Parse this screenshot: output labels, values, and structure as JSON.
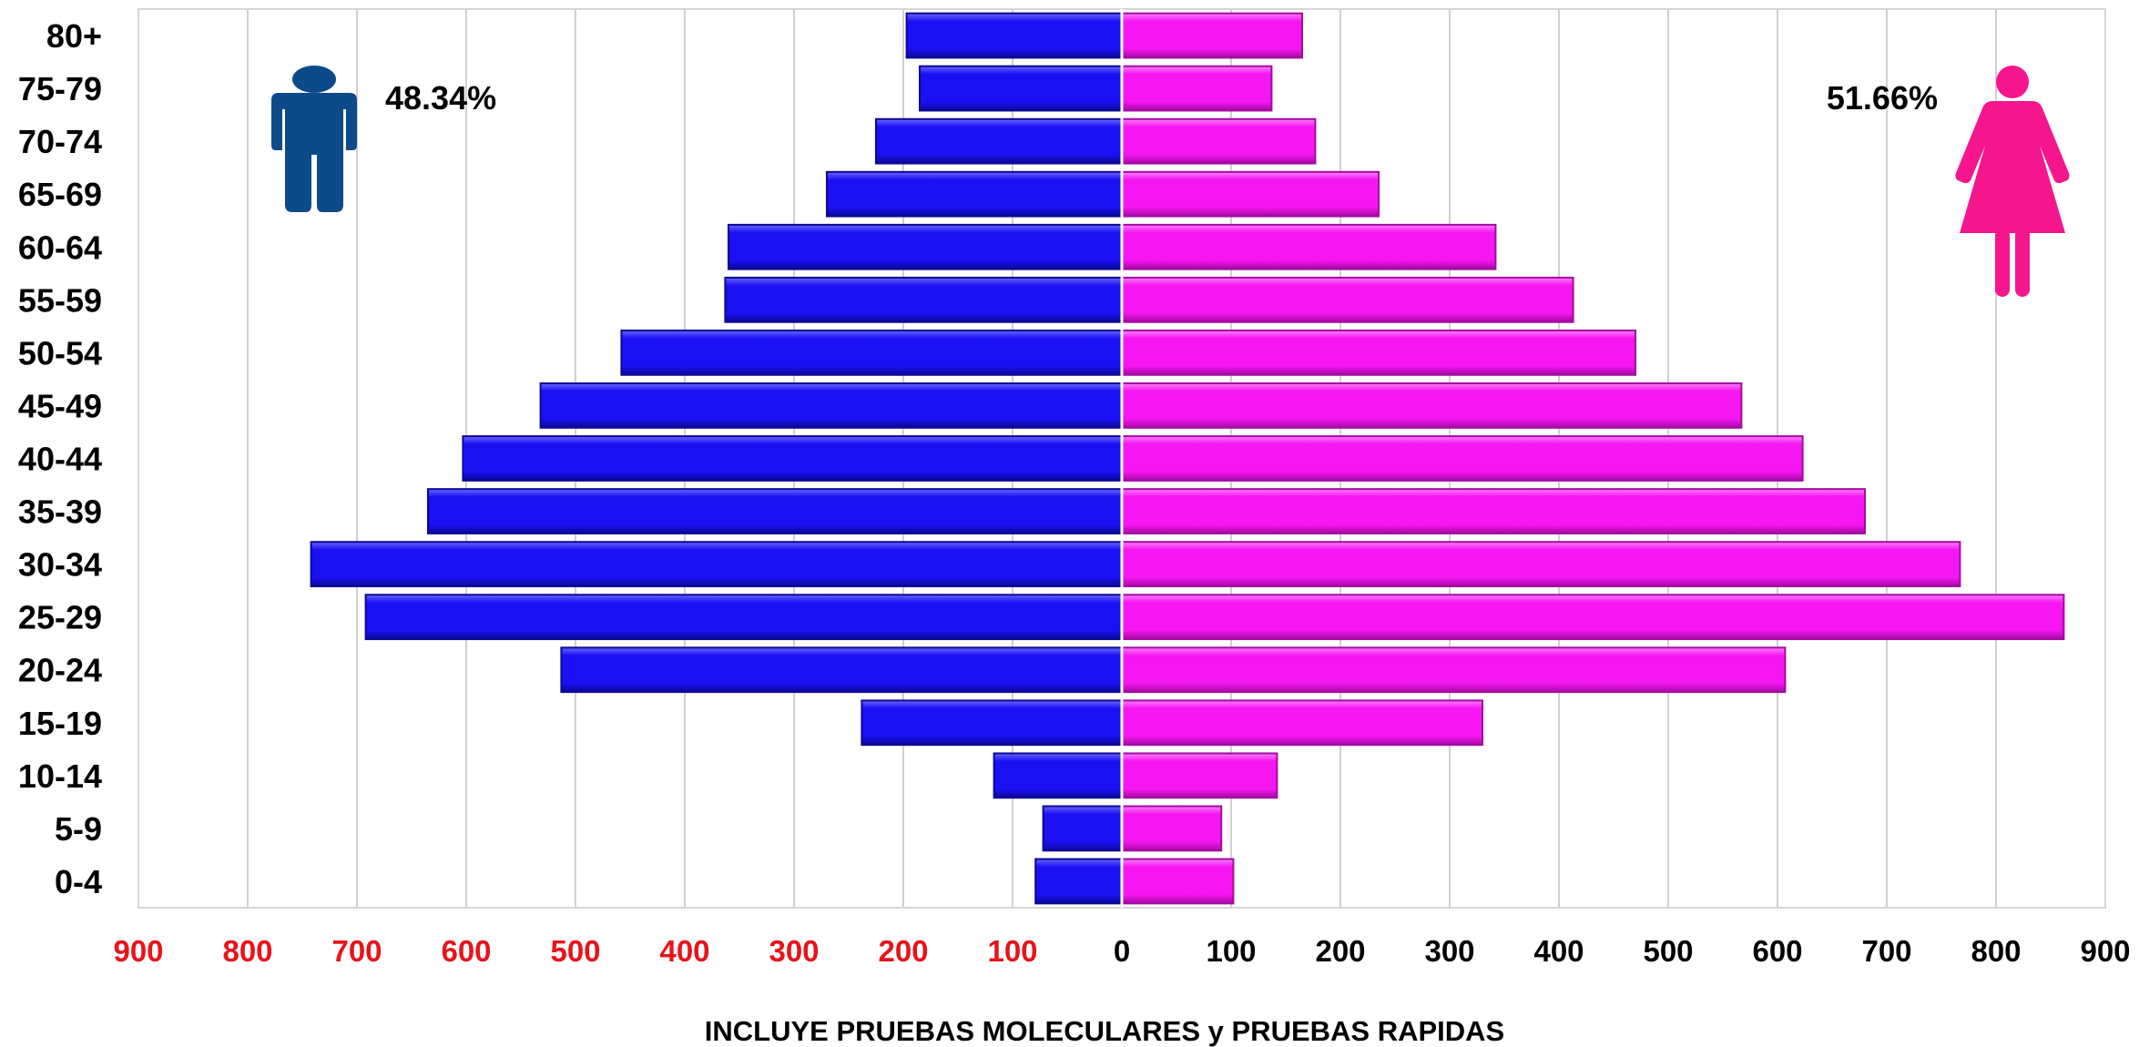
{
  "colors": {
    "male": "#1a10f2",
    "male_dark": "#0c0896",
    "male_icon": "#0d4a8a",
    "female": "#f516f2",
    "female_dark": "#a30aa1",
    "female_icon": "#f5168e",
    "tick_left": "#e8141b",
    "tick_right": "#000000",
    "grid": "#d0d0d0"
  },
  "icons": {
    "male": "man-icon",
    "female": "woman-icon"
  },
  "male_percent": "48.34%",
  "female_percent": "51.66%",
  "chart_data": {
    "type": "bar",
    "orientation": "horizontal-population-pyramid",
    "categories": [
      "80+",
      "75-79",
      "70-74",
      "65-69",
      "60-64",
      "55-59",
      "50-54",
      "45-49",
      "40-44",
      "35-39",
      "30-34",
      "25-29",
      "20-24",
      "15-19",
      "10-14",
      "5-9",
      "0-4"
    ],
    "series": [
      {
        "values": [
          197,
          185,
          225,
          270,
          360,
          363,
          458,
          532,
          603,
          635,
          742,
          692,
          513,
          238,
          117,
          72,
          79
        ]
      },
      {
        "values": [
          165,
          137,
          177,
          235,
          342,
          413,
          470,
          567,
          623,
          680,
          767,
          862,
          607,
          330,
          142,
          91,
          102
        ]
      }
    ],
    "xlim": [
      -900,
      900
    ],
    "xticks_left": [
      "900",
      "800",
      "700",
      "600",
      "500",
      "400",
      "300",
      "200",
      "100"
    ],
    "xticks_right": [
      "0",
      "100",
      "200",
      "300",
      "400",
      "500",
      "600",
      "700",
      "800",
      "900"
    ],
    "xlabel": "INCLUYE PRUEBAS MOLECULARES y PRUEBAS RAPIDAS",
    "grid": true,
    "legend": "none"
  }
}
